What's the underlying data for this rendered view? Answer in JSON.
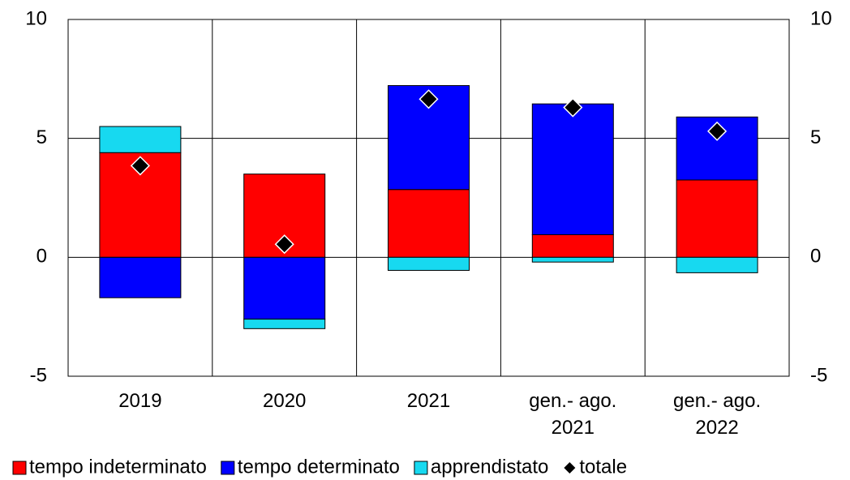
{
  "chart_data": {
    "type": "bar",
    "stacked": true,
    "categories": [
      "2019",
      "2020",
      "2021",
      "gen.- ago.\n2021",
      "gen.- ago.\n2022"
    ],
    "series": [
      {
        "name": "tempo indeterminato",
        "color": "#ff0000",
        "values": [
          4.4,
          3.5,
          2.85,
          0.95,
          3.25
        ]
      },
      {
        "name": "tempo determinato",
        "color": "#0000ff",
        "values": [
          -1.7,
          -2.6,
          4.37,
          5.5,
          2.65
        ]
      },
      {
        "name": "apprendistato",
        "color": "#17d9f0",
        "values": [
          1.1,
          -0.4,
          -0.55,
          -0.2,
          -0.65
        ]
      },
      {
        "name": "totale",
        "color": "#000000",
        "marker": "diamond",
        "values": [
          3.85,
          0.55,
          6.65,
          6.3,
          5.3
        ]
      }
    ],
    "ylim": [
      -5,
      10
    ],
    "yticks": [
      -5,
      0,
      5,
      10
    ],
    "y2lim": [
      -5,
      10
    ],
    "y2ticks": [
      -5,
      0,
      5,
      10
    ],
    "grid": true,
    "legend": "bottom"
  }
}
